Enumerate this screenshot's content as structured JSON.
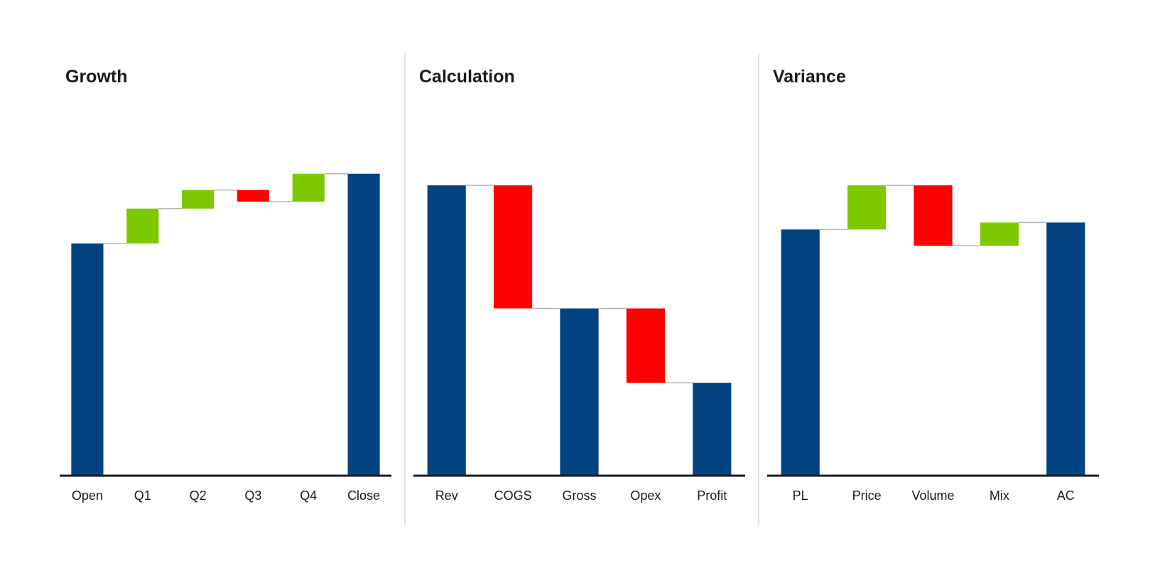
{
  "chart_data": [
    {
      "type": "waterfall",
      "title": "Growth",
      "categories": [
        "Open",
        "Q1",
        "Q2",
        "Q3",
        "Q4",
        "Close"
      ],
      "values": [
        100,
        15,
        8,
        -5,
        12,
        130
      ],
      "measures": [
        "total",
        "relative",
        "relative",
        "relative",
        "relative",
        "total"
      ],
      "colors": {
        "total": "#034382",
        "increase": "#7dc900",
        "decrease": "#ff0000"
      },
      "ylim": [
        0,
        140
      ]
    },
    {
      "type": "waterfall",
      "title": "Calculation",
      "categories": [
        "Rev",
        "COGS",
        "Gross",
        "Opex",
        "Profit"
      ],
      "values": [
        125,
        -53,
        72,
        -32,
        40
      ],
      "measures": [
        "total",
        "relative",
        "total",
        "relative",
        "total"
      ],
      "colors": {
        "total": "#034382",
        "increase": "#7dc900",
        "decrease": "#ff0000"
      },
      "ylim": [
        0,
        140
      ]
    },
    {
      "type": "waterfall",
      "title": "Variance",
      "categories": [
        "PL",
        "Price",
        "Volume",
        "Mix",
        "AC"
      ],
      "values": [
        106,
        19,
        -26,
        10,
        109
      ],
      "measures": [
        "total",
        "relative",
        "relative",
        "relative",
        "total"
      ],
      "colors": {
        "total": "#034382",
        "increase": "#7dc900",
        "decrease": "#ff0000"
      },
      "ylim": [
        0,
        140
      ]
    }
  ]
}
